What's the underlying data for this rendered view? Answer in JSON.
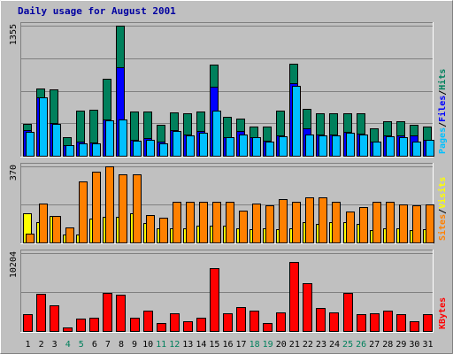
{
  "chart_data": {
    "type": "bar",
    "title": "Daily usage for August 2001",
    "categories": [
      "1",
      "2",
      "3",
      "4",
      "5",
      "6",
      "7",
      "8",
      "9",
      "10",
      "11",
      "12",
      "13",
      "14",
      "15",
      "16",
      "17",
      "18",
      "19",
      "20",
      "21",
      "22",
      "23",
      "24",
      "25",
      "26",
      "27",
      "28",
      "29",
      "30",
      "31"
    ],
    "weekend_days": [
      "4",
      "5",
      "11",
      "12",
      "18",
      "19",
      "25",
      "26"
    ],
    "weekday_tick_color": "#000000",
    "weekend_tick_color": "#00805c",
    "panels": [
      {
        "id": "hits-files-pages",
        "ymax_label": "1355",
        "ylim": [
          0,
          1355
        ],
        "legend": [
          {
            "text": "Pages",
            "color": "#00c0ff"
          },
          {
            "text": "/",
            "color": "#000000"
          },
          {
            "text": "Files",
            "color": "#0000ff"
          },
          {
            "text": "/",
            "color": "#000000"
          },
          {
            "text": "Hits",
            "color": "#00805c"
          }
        ],
        "series": [
          {
            "name": "Hits",
            "color": "#00805c",
            "values": [
              330,
              705,
              690,
              190,
              470,
              480,
              800,
              1355,
              460,
              460,
              320,
              450,
              440,
              460,
              945,
              410,
              390,
              300,
              305,
              470,
              955,
              485,
              440,
              445,
              440,
              440,
              290,
              360,
              360,
              320,
              300
            ]
          },
          {
            "name": "Files",
            "color": "#0000ff",
            "values": [
              270,
              610,
              340,
              110,
              150,
              140,
              380,
              920,
              170,
              180,
              150,
              270,
              220,
              260,
              720,
              190,
              260,
              190,
              160,
              210,
              760,
              290,
              220,
              220,
              250,
              230,
              150,
              210,
              210,
              210,
              170
            ]
          },
          {
            "name": "Pages",
            "color": "#00c0ff",
            "values": [
              250,
              610,
              330,
              110,
              130,
              130,
              370,
              380,
              160,
              170,
              130,
              260,
              210,
              240,
              470,
              190,
              220,
              190,
              150,
              200,
              730,
              220,
              210,
              210,
              240,
              220,
              150,
              200,
              190,
              150,
              170
            ]
          }
        ]
      },
      {
        "id": "visits-sites",
        "ymax_label": "370",
        "ylim": [
          0,
          370
        ],
        "legend": [
          {
            "text": "Sites",
            "color": "#ff8000"
          },
          {
            "text": "/",
            "color": "#000000"
          },
          {
            "text": "Visits",
            "color": "#ffff00"
          }
        ],
        "series": [
          {
            "name": "Visits",
            "color": "#ffff00",
            "values": [
              140,
              100,
              130,
              40,
              40,
              115,
              125,
              125,
              140,
              95,
              70,
              70,
              70,
              80,
              80,
              80,
              70,
              65,
              70,
              65,
              70,
              100,
              90,
              100,
              100,
              90,
              60,
              70,
              70,
              60,
              65
            ]
          },
          {
            "name": "Sites",
            "color": "#ff8000",
            "values": [
              45,
              190,
              130,
              75,
              295,
              345,
              370,
              330,
              330,
              135,
              120,
              200,
              200,
              200,
              200,
              200,
              155,
              190,
              180,
              210,
              200,
              220,
              220,
              200,
              150,
              170,
              200,
              200,
              185,
              180,
              185
            ]
          }
        ]
      },
      {
        "id": "kbytes",
        "ymax_label": "10204",
        "ylim": [
          0,
          10204
        ],
        "legend": [
          {
            "text": "KBytes",
            "color": "#ff0000"
          }
        ],
        "series": [
          {
            "name": "KBytes",
            "color": "#ff0000",
            "values": [
              2170,
              4920,
              3350,
              520,
              1580,
              1690,
              4930,
              4780,
              1730,
              2690,
              1070,
              2360,
              1240,
              1730,
              8200,
              2300,
              3140,
              2660,
              1090,
              2440,
              9000,
              6300,
              3010,
              2480,
              4960,
              2230,
              2330,
              2680,
              2260,
              1290,
              2200
            ]
          }
        ]
      }
    ]
  }
}
